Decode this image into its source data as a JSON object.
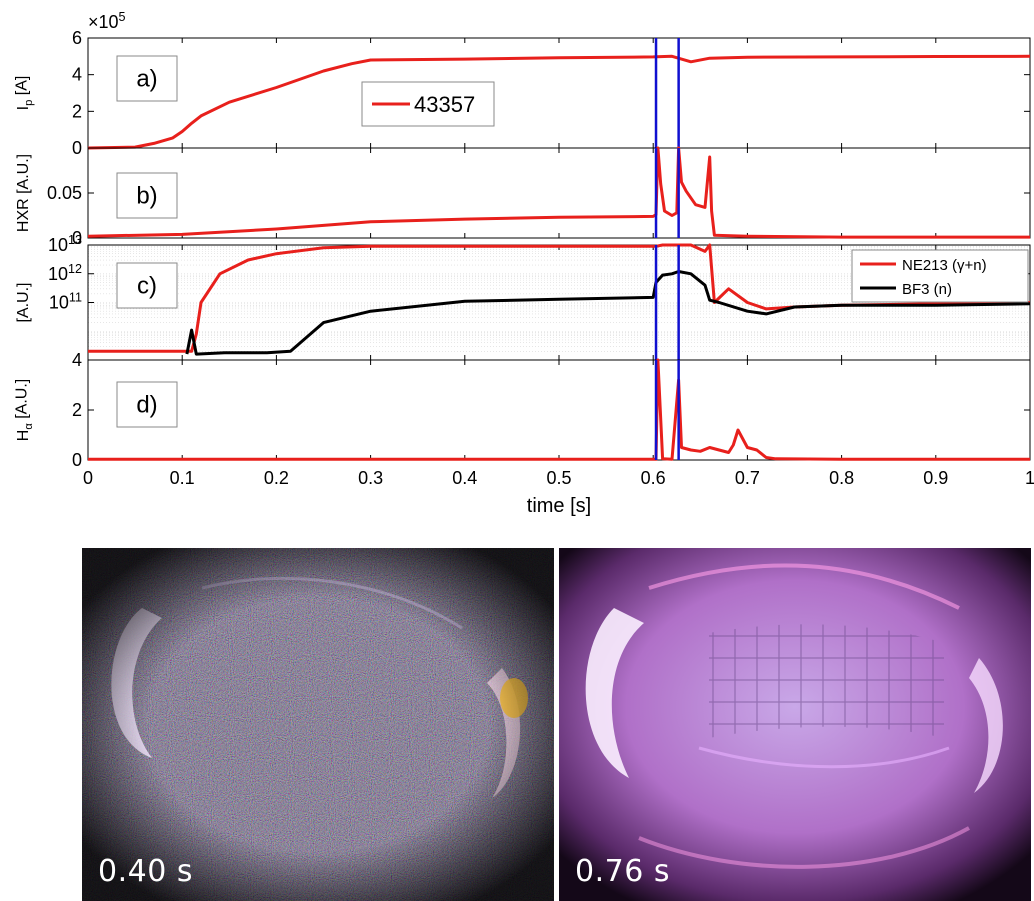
{
  "chart_data": [
    {
      "type": "line",
      "panel_label": "a)",
      "ylabel": "I_p [A]",
      "y_multiplier": "×10^5",
      "ylim": [
        0,
        6
      ],
      "yticks": [
        "0",
        "2",
        "4",
        "6"
      ],
      "legend": [
        "43357"
      ],
      "legend_position": "top-center",
      "series": [
        {
          "name": "43357",
          "color": "#e8201c",
          "x": [
            0,
            0.05,
            0.07,
            0.09,
            0.1,
            0.11,
            0.12,
            0.15,
            0.2,
            0.25,
            0.28,
            0.3,
            0.4,
            0.5,
            0.6,
            0.62,
            0.64,
            0.66,
            0.7,
            0.8,
            0.9,
            1.0
          ],
          "values": [
            0,
            0.05,
            0.25,
            0.55,
            0.9,
            1.35,
            1.75,
            2.5,
            3.3,
            4.2,
            4.6,
            4.8,
            4.85,
            4.92,
            4.97,
            5.0,
            4.7,
            4.9,
            4.95,
            4.97,
            4.99,
            5.0
          ]
        }
      ],
      "vlines": [
        0.603,
        0.627
      ]
    },
    {
      "type": "line",
      "panel_label": "b)",
      "ylabel": "HXR [A.U.]",
      "ylim": [
        0,
        0.1
      ],
      "yticks": [
        "0",
        "0.05"
      ],
      "series": [
        {
          "name": "",
          "color": "#e8201c",
          "x": [
            0,
            0.1,
            0.2,
            0.25,
            0.3,
            0.4,
            0.5,
            0.6,
            0.603,
            0.605,
            0.608,
            0.612,
            0.62,
            0.625,
            0.627,
            0.63,
            0.635,
            0.645,
            0.655,
            0.66,
            0.662,
            0.665,
            0.7,
            0.8,
            0.9,
            1.0
          ],
          "values": [
            0.002,
            0.004,
            0.01,
            0.014,
            0.018,
            0.021,
            0.023,
            0.024,
            0.026,
            0.1,
            0.06,
            0.03,
            0.025,
            0.028,
            0.1,
            0.062,
            0.052,
            0.037,
            0.034,
            0.09,
            0.03,
            0.003,
            0.002,
            0.001,
            0.001,
            0.001
          ]
        }
      ],
      "vlines": [
        0.603,
        0.627
      ]
    },
    {
      "type": "line",
      "panel_label": "c)",
      "ylabel": "[A.U.]",
      "yscale": "log",
      "ylim": [
        1000000000.0,
        10000000000000.0
      ],
      "yticks": [
        "10^11",
        "10^12",
        "10^13"
      ],
      "legend": [
        "NE213 (γ+n)",
        "BF3 (n)"
      ],
      "legend_position": "top-right",
      "series": [
        {
          "name": "NE213 (γ+n)",
          "color": "#e8201c",
          "x": [
            0,
            0.11,
            0.115,
            0.12,
            0.14,
            0.17,
            0.2,
            0.25,
            0.3,
            0.35,
            0.4,
            0.5,
            0.6,
            0.603,
            0.61,
            0.62,
            0.627,
            0.64,
            0.655,
            0.66,
            0.665,
            0.68,
            0.7,
            0.72,
            0.75,
            0.8,
            0.9,
            1.0
          ],
          "values": [
            2000000000.0,
            2000000000.0,
            8000000000.0,
            100000000000.0,
            1000000000000.0,
            3000000000000.0,
            5000000000000.0,
            8000000000000.0,
            9000000000000.0,
            9000000000000.0,
            9000000000000.0,
            9000000000000.0,
            9000000000000.0,
            9000000000000.0,
            10000000000000.0,
            10000000000000.0,
            10000000000000.0,
            10000000000000.0,
            6000000000000.0,
            10000000000000.0,
            100000000000.0,
            300000000000.0,
            100000000000.0,
            60000000000.0,
            70000000000.0,
            80000000000.0,
            90000000000.0,
            100000000000.0
          ]
        },
        {
          "name": "BF3 (n)",
          "color": "#000000",
          "x": [
            0.105,
            0.11,
            0.115,
            0.145,
            0.17,
            0.19,
            0.215,
            0.25,
            0.3,
            0.4,
            0.5,
            0.6,
            0.603,
            0.61,
            0.62,
            0.627,
            0.64,
            0.655,
            0.66,
            0.67,
            0.7,
            0.72,
            0.75,
            0.8,
            0.9,
            1.0
          ],
          "values": [
            1600000000.0,
            11000000000.0,
            1600000000.0,
            1800000000.0,
            1800000000.0,
            1800000000.0,
            2000000000.0,
            20000000000.0,
            50000000000.0,
            110000000000.0,
            130000000000.0,
            150000000000.0,
            500000000000.0,
            900000000000.0,
            1000000000000.0,
            1200000000000.0,
            1000000000000.0,
            400000000000.0,
            120000000000.0,
            100000000000.0,
            50000000000.0,
            40000000000.0,
            70000000000.0,
            80000000000.0,
            80000000000.0,
            90000000000.0
          ]
        }
      ],
      "vlines": [
        0.603,
        0.627
      ]
    },
    {
      "type": "line",
      "panel_label": "d)",
      "ylabel": "H_α [A.U.]",
      "ylim": [
        0,
        4
      ],
      "yticks": [
        "0",
        "2",
        "4"
      ],
      "series": [
        {
          "name": "",
          "color": "#e8201c",
          "x": [
            0,
            0.5,
            0.6,
            0.603,
            0.605,
            0.61,
            0.62,
            0.627,
            0.63,
            0.64,
            0.65,
            0.66,
            0.67,
            0.68,
            0.685,
            0.69,
            0.7,
            0.71,
            0.72,
            0.73,
            0.8,
            1.0
          ],
          "values": [
            0.03,
            0.03,
            0.03,
            0.03,
            4.0,
            0.05,
            0.03,
            3.2,
            0.5,
            0.4,
            0.35,
            0.5,
            0.4,
            0.3,
            0.6,
            1.2,
            0.5,
            0.4,
            0.1,
            0.05,
            0.03,
            0.03
          ]
        }
      ],
      "vlines": [
        0.603,
        0.627
      ]
    }
  ],
  "x_axis": {
    "label": "time [s]",
    "xlim": [
      0,
      1
    ],
    "ticks": [
      "0",
      "0.1",
      "0.2",
      "0.3",
      "0.4",
      "0.5",
      "0.6",
      "0.7",
      "0.8",
      "0.9",
      "1"
    ]
  },
  "colors": {
    "red": "#e8201c",
    "black": "#000000",
    "blue": "#1010d0"
  },
  "camera_frames": [
    {
      "label": "0.40 s"
    },
    {
      "label": "0.76 s"
    }
  ]
}
